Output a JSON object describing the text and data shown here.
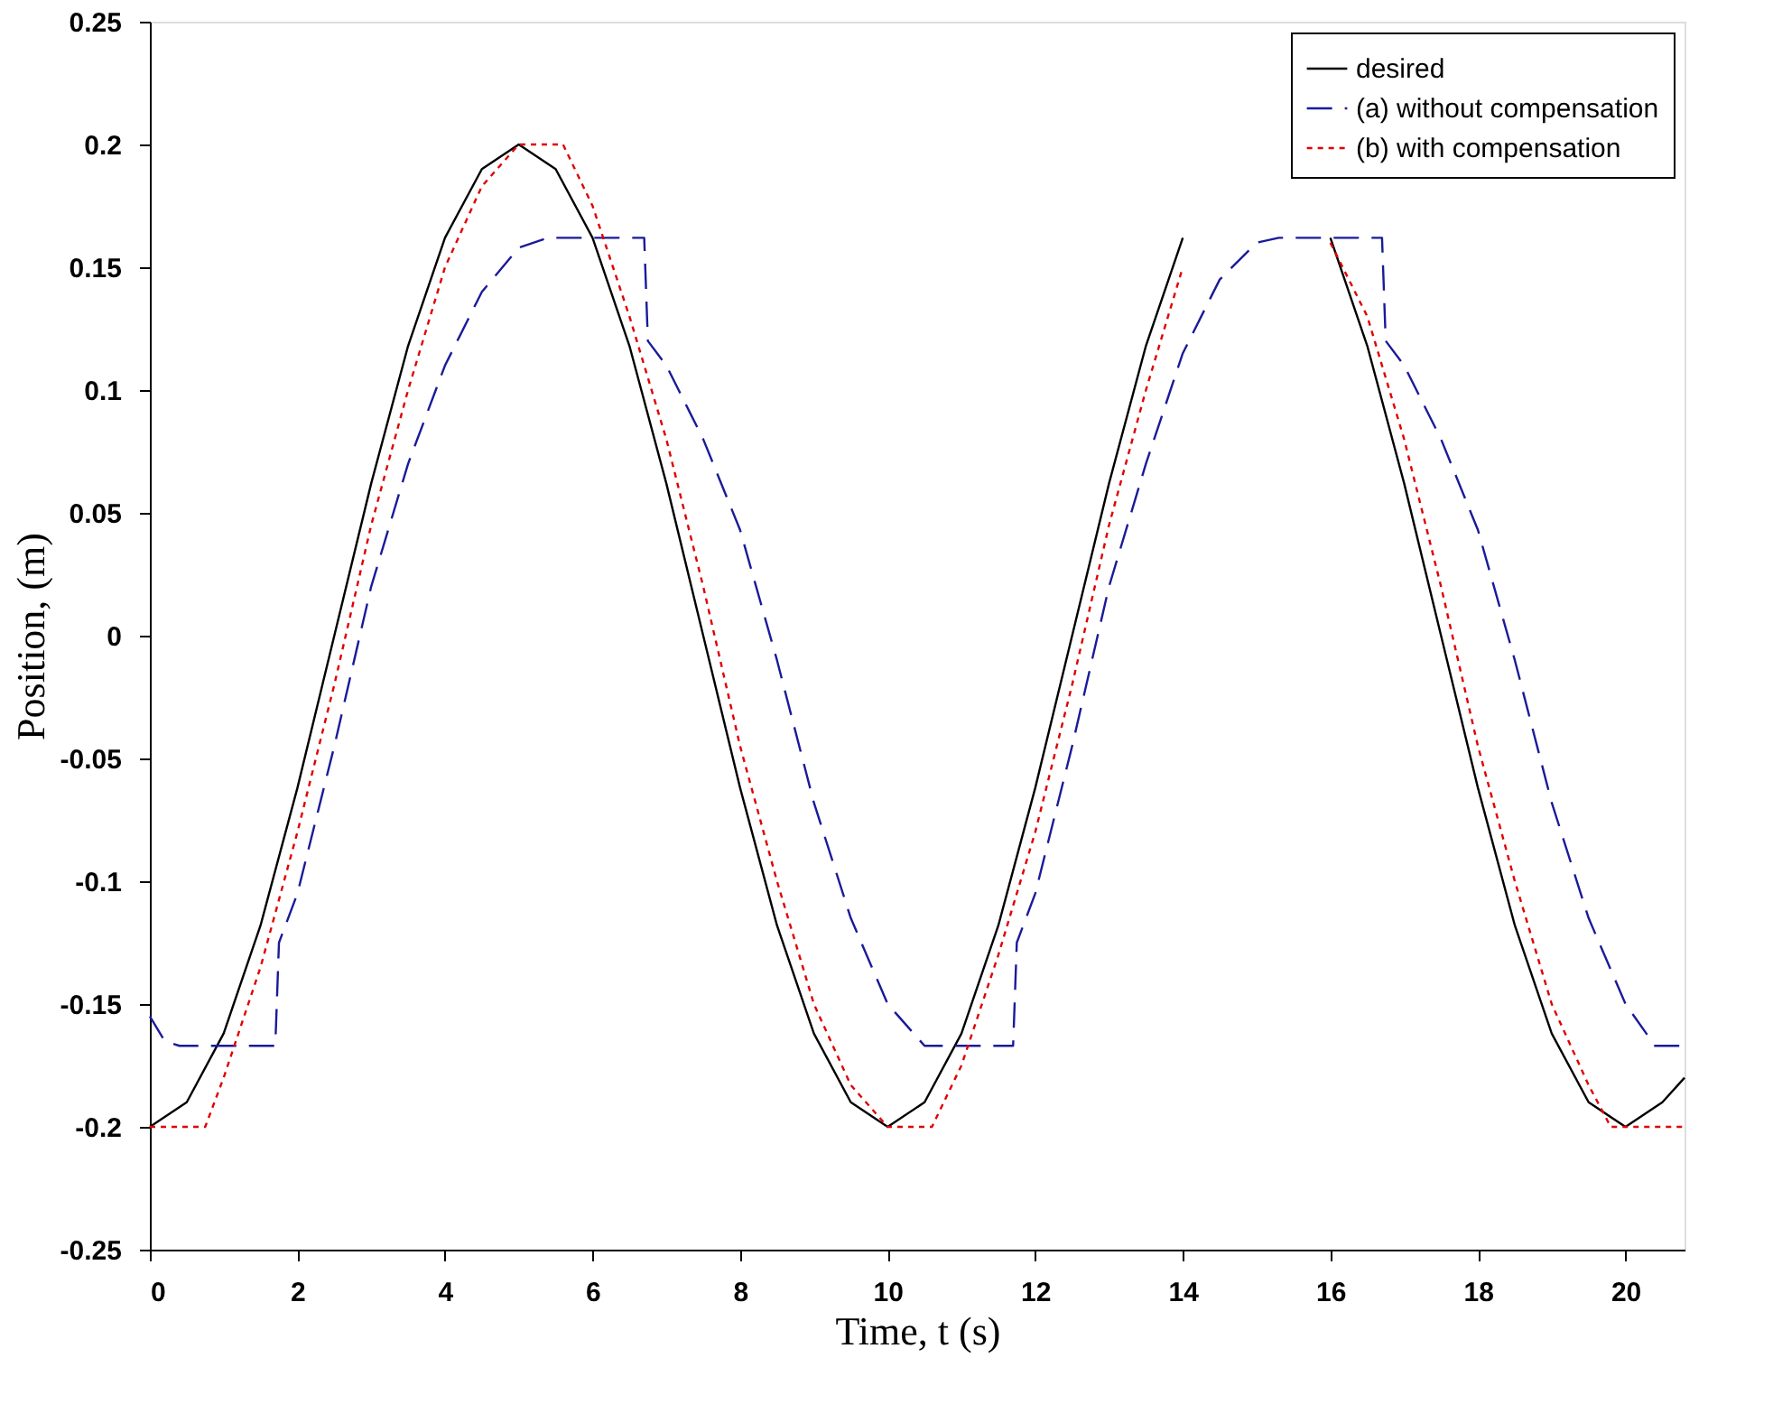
{
  "chart_data": {
    "type": "line",
    "xlabel": "Time, t (s)",
    "ylabel": "Position, (m)",
    "xlim": [
      0,
      20.8
    ],
    "ylim": [
      -0.25,
      0.25
    ],
    "xticks": [
      0,
      2,
      4,
      6,
      8,
      10,
      12,
      14,
      16,
      18,
      20
    ],
    "yticks": [
      -0.25,
      -0.2,
      -0.15,
      -0.1,
      -0.05,
      0,
      0.05,
      0.1,
      0.15,
      0.2,
      0.25
    ],
    "grid": false,
    "legend": "top right",
    "marker": "none",
    "series": [
      {
        "name": "desired",
        "color": "#000000",
        "line_style": "solid",
        "x": [
          0,
          0.5,
          1,
          1.5,
          2,
          2.5,
          3,
          3.5,
          4,
          4.5,
          5,
          5.5,
          6,
          6.5,
          7,
          7.5,
          8,
          8.5,
          9,
          9.5,
          10,
          10.5,
          11,
          11.5,
          12,
          12.5,
          13,
          13.5,
          14,
          15,
          16,
          16.5,
          17,
          17.5,
          18,
          18.5,
          19,
          19.5,
          20,
          20.5,
          20.8
        ],
        "values": [
          -0.2,
          -0.19,
          -0.162,
          -0.118,
          -0.062,
          0,
          0.062,
          0.118,
          0.162,
          0.19,
          0.2,
          0.19,
          0.162,
          0.118,
          0.062,
          0,
          -0.062,
          -0.118,
          -0.162,
          -0.19,
          -0.2,
          -0.19,
          -0.162,
          -0.118,
          -0.062,
          0,
          0.062,
          0.118,
          0.162,
          null,
          0.162,
          0.118,
          0.062,
          0,
          -0.062,
          -0.118,
          -0.162,
          -0.19,
          -0.2,
          -0.19,
          -0.18
        ]
      },
      {
        "name": "(a) without compensation",
        "color": "#1a1a9a",
        "line_style": "dashed",
        "x": [
          0,
          0.2,
          0.4,
          1.7,
          1.75,
          2,
          2.5,
          3,
          3.5,
          4,
          4.5,
          5,
          5.4,
          6.7,
          6.75,
          7,
          7.5,
          8,
          8.5,
          9,
          9.5,
          10,
          10.5,
          11.7,
          11.75,
          12,
          12.5,
          13,
          13.5,
          14,
          14.5,
          15,
          15.3,
          16.7,
          16.75,
          17,
          17.5,
          18,
          18.5,
          19,
          19.5,
          20,
          20.4,
          20.8
        ],
        "values": [
          -0.155,
          -0.165,
          -0.167,
          -0.167,
          -0.125,
          -0.105,
          -0.045,
          0.02,
          0.07,
          0.11,
          0.14,
          0.158,
          0.162,
          0.162,
          0.12,
          0.11,
          0.08,
          0.043,
          -0.01,
          -0.068,
          -0.115,
          -0.15,
          -0.167,
          -0.167,
          -0.125,
          -0.105,
          -0.045,
          0.02,
          0.07,
          0.115,
          0.145,
          0.16,
          0.162,
          0.162,
          0.12,
          0.11,
          0.08,
          0.043,
          -0.01,
          -0.068,
          -0.115,
          -0.15,
          -0.167,
          -0.167
        ]
      },
      {
        "name": "(b) with compensation",
        "color": "#e00000",
        "line_style": "dotted",
        "x": [
          0,
          0.75,
          1,
          1.5,
          2,
          2.5,
          3,
          3.5,
          4,
          4.5,
          5,
          5.6,
          6,
          6.5,
          7,
          7.5,
          8,
          8.5,
          9,
          9.5,
          10,
          10.6,
          11,
          11.5,
          12,
          12.5,
          13,
          13.5,
          14,
          15,
          16,
          16.5,
          17,
          17.5,
          18,
          18.5,
          19,
          19.5,
          19.8,
          20.8
        ],
        "values": [
          -0.2,
          -0.2,
          -0.18,
          -0.135,
          -0.08,
          -0.02,
          0.045,
          0.1,
          0.15,
          0.183,
          0.2,
          0.2,
          0.175,
          0.13,
          0.08,
          0.02,
          -0.045,
          -0.1,
          -0.15,
          -0.183,
          -0.2,
          -0.2,
          -0.175,
          -0.13,
          -0.08,
          -0.02,
          0.045,
          0.1,
          0.15,
          null,
          0.16,
          0.13,
          0.08,
          0.02,
          -0.045,
          -0.1,
          -0.15,
          -0.183,
          -0.2,
          -0.2
        ]
      }
    ]
  }
}
